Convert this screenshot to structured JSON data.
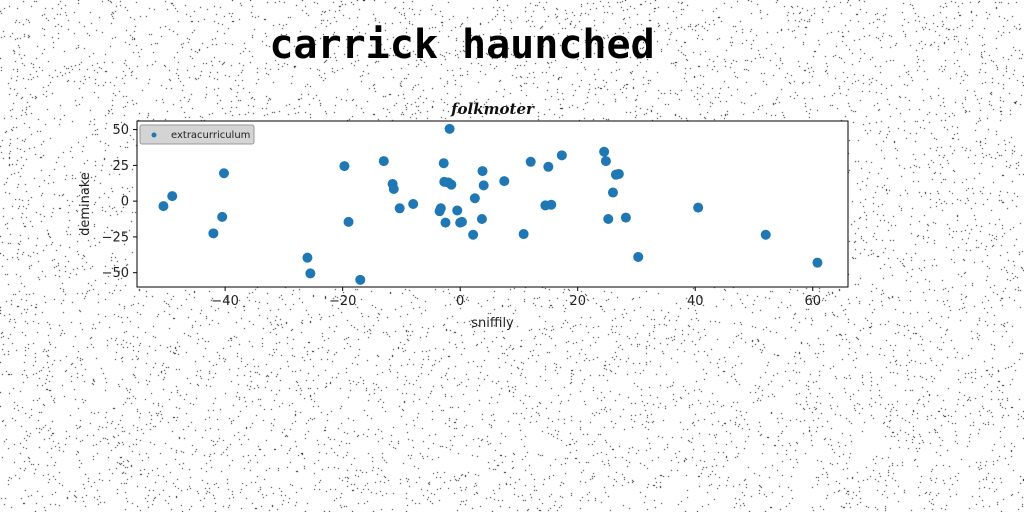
{
  "page": {
    "title": "carrick haunched"
  },
  "chart_data": {
    "type": "scatter",
    "title": "folkmoter",
    "xlabel": "sniffily",
    "ylabel": "deminake",
    "xlim": [
      -55,
      66
    ],
    "ylim": [
      -60,
      56
    ],
    "xticks": [
      -40,
      -20,
      0,
      20,
      40,
      60
    ],
    "yticks": [
      -50,
      -25,
      0,
      25,
      50
    ],
    "grid": false,
    "legend_position": "upper-left",
    "series": [
      {
        "name": "extracurriculum",
        "color": "#1f77b4",
        "points": [
          [
            -50.5,
            -3.5
          ],
          [
            -49,
            3.5
          ],
          [
            -42,
            -22.5
          ],
          [
            -40.5,
            -11
          ],
          [
            -40.2,
            19.5
          ],
          [
            -26,
            -39.5
          ],
          [
            -25.5,
            -50.5
          ],
          [
            -19.7,
            24.5
          ],
          [
            -19,
            -14.5
          ],
          [
            -17,
            -55
          ],
          [
            -13,
            28
          ],
          [
            -11.5,
            12
          ],
          [
            -11.3,
            8.5
          ],
          [
            -10.3,
            -5
          ],
          [
            -8,
            -2
          ],
          [
            -3.5,
            -7
          ],
          [
            -3.3,
            -5
          ],
          [
            -2.8,
            26.5
          ],
          [
            -2.7,
            13.5
          ],
          [
            -2.5,
            -15
          ],
          [
            -2,
            13
          ],
          [
            -1.8,
            50.5
          ],
          [
            -1.5,
            11.5
          ],
          [
            -0.5,
            -6.5
          ],
          [
            0,
            -15
          ],
          [
            0.3,
            -14.5
          ],
          [
            2.2,
            -23.5
          ],
          [
            2.5,
            2
          ],
          [
            3.7,
            -12.5
          ],
          [
            3.8,
            21
          ],
          [
            4,
            11
          ],
          [
            7.5,
            14
          ],
          [
            10.8,
            -23
          ],
          [
            12,
            27.5
          ],
          [
            14.5,
            -3
          ],
          [
            15,
            24
          ],
          [
            15.5,
            -2.5
          ],
          [
            17.3,
            32
          ],
          [
            24.5,
            34.5
          ],
          [
            24.8,
            28
          ],
          [
            25.2,
            -12.5
          ],
          [
            26,
            6
          ],
          [
            26.5,
            18.5
          ],
          [
            27,
            19
          ],
          [
            28.2,
            -11.5
          ],
          [
            30.3,
            -39
          ],
          [
            40.5,
            -4.5
          ],
          [
            52,
            -23.5
          ],
          [
            60.8,
            -43
          ]
        ]
      }
    ]
  }
}
